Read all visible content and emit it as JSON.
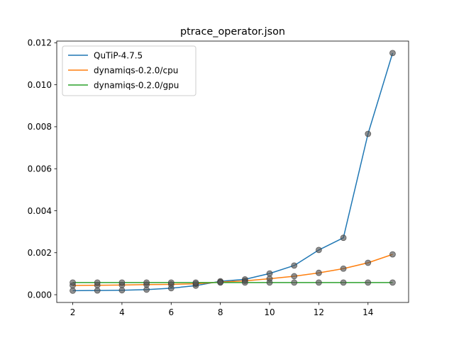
{
  "chart_data": {
    "type": "line",
    "title": "ptrace_operator.json",
    "xlabel": "",
    "ylabel": "",
    "x": [
      2,
      3,
      4,
      5,
      6,
      7,
      8,
      9,
      10,
      11,
      12,
      13,
      14,
      15
    ],
    "xlim": [
      1.35,
      15.65
    ],
    "ylim": [
      -0.00037,
      0.01208
    ],
    "xticks": [
      2,
      4,
      6,
      8,
      10,
      12,
      14
    ],
    "yticks": [
      0.0,
      0.002,
      0.004,
      0.006,
      0.008,
      0.01,
      0.012
    ],
    "ytick_labels": [
      "0.000",
      "0.002",
      "0.004",
      "0.006",
      "0.008",
      "0.010",
      "0.012"
    ],
    "grid": false,
    "legend_position": "top-left",
    "marker_color": "#555555",
    "series": [
      {
        "name": "QuTiP-4.7.5",
        "color": "#1f77b4",
        "values": [
          0.00019,
          0.0002,
          0.00021,
          0.00024,
          0.00031,
          0.00043,
          0.00064,
          0.00073,
          0.00101,
          0.00139,
          0.00213,
          0.00271,
          0.00766,
          0.01151
        ]
      },
      {
        "name": "dynamiqs-0.2.0/cpu",
        "color": "#ff7f0e",
        "values": [
          0.00044,
          0.00045,
          0.00046,
          0.00048,
          0.00049,
          0.00052,
          0.0006,
          0.00066,
          0.00076,
          0.00088,
          0.00104,
          0.00124,
          0.00152,
          0.00192
        ]
      },
      {
        "name": "dynamiqs-0.2.0/gpu",
        "color": "#2ca02c",
        "values": [
          0.00058,
          0.00058,
          0.00058,
          0.00058,
          0.00058,
          0.00058,
          0.00058,
          0.00058,
          0.00058,
          0.00058,
          0.00058,
          0.00058,
          0.00058,
          0.00058
        ]
      }
    ]
  }
}
